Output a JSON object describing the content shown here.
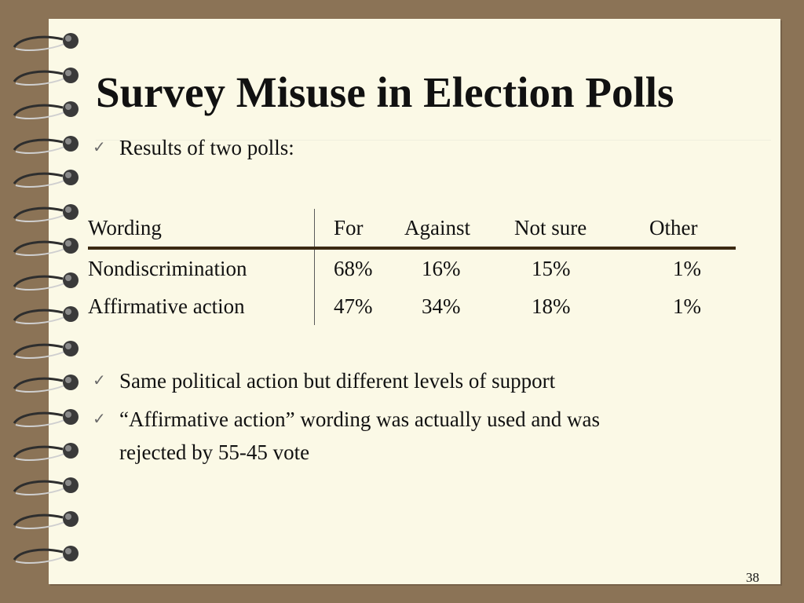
{
  "slide": {
    "title": "Survey Misuse in Election Polls",
    "page_number": "38"
  },
  "bullets": [
    {
      "text": "Results of two polls:"
    },
    {
      "text": "Same political action but different levels of support"
    },
    {
      "text": "“Affirmative action” wording was actually used and was",
      "text2": "rejected by 55-45 vote"
    }
  ],
  "table": {
    "headers": [
      "Wording",
      "For",
      "Against",
      "Not sure",
      "Other"
    ],
    "rows": [
      [
        "Nondiscrimination",
        "68%",
        "16%",
        "15%",
        "1%"
      ],
      [
        "Affirmative action",
        "47%",
        "34%",
        "18%",
        "1%"
      ]
    ]
  },
  "colors": {
    "background": "#8b7356",
    "paper": "#fbf9e6",
    "table_rule": "#3b2a12"
  }
}
